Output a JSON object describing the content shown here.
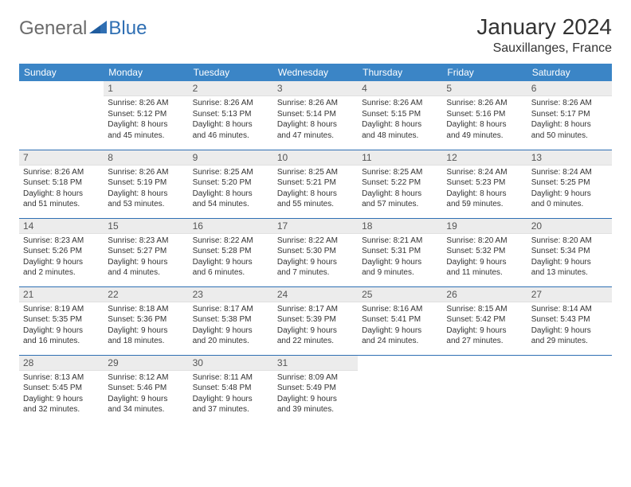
{
  "logo": {
    "text1": "General",
    "text2": "Blue"
  },
  "title": "January 2024",
  "location": "Sauxillanges, France",
  "colors": {
    "header_bg": "#3b85c6",
    "border": "#2f6fb3",
    "daynum_bg": "#ececec",
    "text": "#333333",
    "logo_gray": "#6b6b6b",
    "logo_blue": "#2f6fb3"
  },
  "weekdays": [
    "Sunday",
    "Monday",
    "Tuesday",
    "Wednesday",
    "Thursday",
    "Friday",
    "Saturday"
  ],
  "weeks": [
    [
      null,
      {
        "n": "1",
        "sr": "Sunrise: 8:26 AM",
        "ss": "Sunset: 5:12 PM",
        "d1": "Daylight: 8 hours",
        "d2": "and 45 minutes."
      },
      {
        "n": "2",
        "sr": "Sunrise: 8:26 AM",
        "ss": "Sunset: 5:13 PM",
        "d1": "Daylight: 8 hours",
        "d2": "and 46 minutes."
      },
      {
        "n": "3",
        "sr": "Sunrise: 8:26 AM",
        "ss": "Sunset: 5:14 PM",
        "d1": "Daylight: 8 hours",
        "d2": "and 47 minutes."
      },
      {
        "n": "4",
        "sr": "Sunrise: 8:26 AM",
        "ss": "Sunset: 5:15 PM",
        "d1": "Daylight: 8 hours",
        "d2": "and 48 minutes."
      },
      {
        "n": "5",
        "sr": "Sunrise: 8:26 AM",
        "ss": "Sunset: 5:16 PM",
        "d1": "Daylight: 8 hours",
        "d2": "and 49 minutes."
      },
      {
        "n": "6",
        "sr": "Sunrise: 8:26 AM",
        "ss": "Sunset: 5:17 PM",
        "d1": "Daylight: 8 hours",
        "d2": "and 50 minutes."
      }
    ],
    [
      {
        "n": "7",
        "sr": "Sunrise: 8:26 AM",
        "ss": "Sunset: 5:18 PM",
        "d1": "Daylight: 8 hours",
        "d2": "and 51 minutes."
      },
      {
        "n": "8",
        "sr": "Sunrise: 8:26 AM",
        "ss": "Sunset: 5:19 PM",
        "d1": "Daylight: 8 hours",
        "d2": "and 53 minutes."
      },
      {
        "n": "9",
        "sr": "Sunrise: 8:25 AM",
        "ss": "Sunset: 5:20 PM",
        "d1": "Daylight: 8 hours",
        "d2": "and 54 minutes."
      },
      {
        "n": "10",
        "sr": "Sunrise: 8:25 AM",
        "ss": "Sunset: 5:21 PM",
        "d1": "Daylight: 8 hours",
        "d2": "and 55 minutes."
      },
      {
        "n": "11",
        "sr": "Sunrise: 8:25 AM",
        "ss": "Sunset: 5:22 PM",
        "d1": "Daylight: 8 hours",
        "d2": "and 57 minutes."
      },
      {
        "n": "12",
        "sr": "Sunrise: 8:24 AM",
        "ss": "Sunset: 5:23 PM",
        "d1": "Daylight: 8 hours",
        "d2": "and 59 minutes."
      },
      {
        "n": "13",
        "sr": "Sunrise: 8:24 AM",
        "ss": "Sunset: 5:25 PM",
        "d1": "Daylight: 9 hours",
        "d2": "and 0 minutes."
      }
    ],
    [
      {
        "n": "14",
        "sr": "Sunrise: 8:23 AM",
        "ss": "Sunset: 5:26 PM",
        "d1": "Daylight: 9 hours",
        "d2": "and 2 minutes."
      },
      {
        "n": "15",
        "sr": "Sunrise: 8:23 AM",
        "ss": "Sunset: 5:27 PM",
        "d1": "Daylight: 9 hours",
        "d2": "and 4 minutes."
      },
      {
        "n": "16",
        "sr": "Sunrise: 8:22 AM",
        "ss": "Sunset: 5:28 PM",
        "d1": "Daylight: 9 hours",
        "d2": "and 6 minutes."
      },
      {
        "n": "17",
        "sr": "Sunrise: 8:22 AM",
        "ss": "Sunset: 5:30 PM",
        "d1": "Daylight: 9 hours",
        "d2": "and 7 minutes."
      },
      {
        "n": "18",
        "sr": "Sunrise: 8:21 AM",
        "ss": "Sunset: 5:31 PM",
        "d1": "Daylight: 9 hours",
        "d2": "and 9 minutes."
      },
      {
        "n": "19",
        "sr": "Sunrise: 8:20 AM",
        "ss": "Sunset: 5:32 PM",
        "d1": "Daylight: 9 hours",
        "d2": "and 11 minutes."
      },
      {
        "n": "20",
        "sr": "Sunrise: 8:20 AM",
        "ss": "Sunset: 5:34 PM",
        "d1": "Daylight: 9 hours",
        "d2": "and 13 minutes."
      }
    ],
    [
      {
        "n": "21",
        "sr": "Sunrise: 8:19 AM",
        "ss": "Sunset: 5:35 PM",
        "d1": "Daylight: 9 hours",
        "d2": "and 16 minutes."
      },
      {
        "n": "22",
        "sr": "Sunrise: 8:18 AM",
        "ss": "Sunset: 5:36 PM",
        "d1": "Daylight: 9 hours",
        "d2": "and 18 minutes."
      },
      {
        "n": "23",
        "sr": "Sunrise: 8:17 AM",
        "ss": "Sunset: 5:38 PM",
        "d1": "Daylight: 9 hours",
        "d2": "and 20 minutes."
      },
      {
        "n": "24",
        "sr": "Sunrise: 8:17 AM",
        "ss": "Sunset: 5:39 PM",
        "d1": "Daylight: 9 hours",
        "d2": "and 22 minutes."
      },
      {
        "n": "25",
        "sr": "Sunrise: 8:16 AM",
        "ss": "Sunset: 5:41 PM",
        "d1": "Daylight: 9 hours",
        "d2": "and 24 minutes."
      },
      {
        "n": "26",
        "sr": "Sunrise: 8:15 AM",
        "ss": "Sunset: 5:42 PM",
        "d1": "Daylight: 9 hours",
        "d2": "and 27 minutes."
      },
      {
        "n": "27",
        "sr": "Sunrise: 8:14 AM",
        "ss": "Sunset: 5:43 PM",
        "d1": "Daylight: 9 hours",
        "d2": "and 29 minutes."
      }
    ],
    [
      {
        "n": "28",
        "sr": "Sunrise: 8:13 AM",
        "ss": "Sunset: 5:45 PM",
        "d1": "Daylight: 9 hours",
        "d2": "and 32 minutes."
      },
      {
        "n": "29",
        "sr": "Sunrise: 8:12 AM",
        "ss": "Sunset: 5:46 PM",
        "d1": "Daylight: 9 hours",
        "d2": "and 34 minutes."
      },
      {
        "n": "30",
        "sr": "Sunrise: 8:11 AM",
        "ss": "Sunset: 5:48 PM",
        "d1": "Daylight: 9 hours",
        "d2": "and 37 minutes."
      },
      {
        "n": "31",
        "sr": "Sunrise: 8:09 AM",
        "ss": "Sunset: 5:49 PM",
        "d1": "Daylight: 9 hours",
        "d2": "and 39 minutes."
      },
      null,
      null,
      null
    ]
  ]
}
